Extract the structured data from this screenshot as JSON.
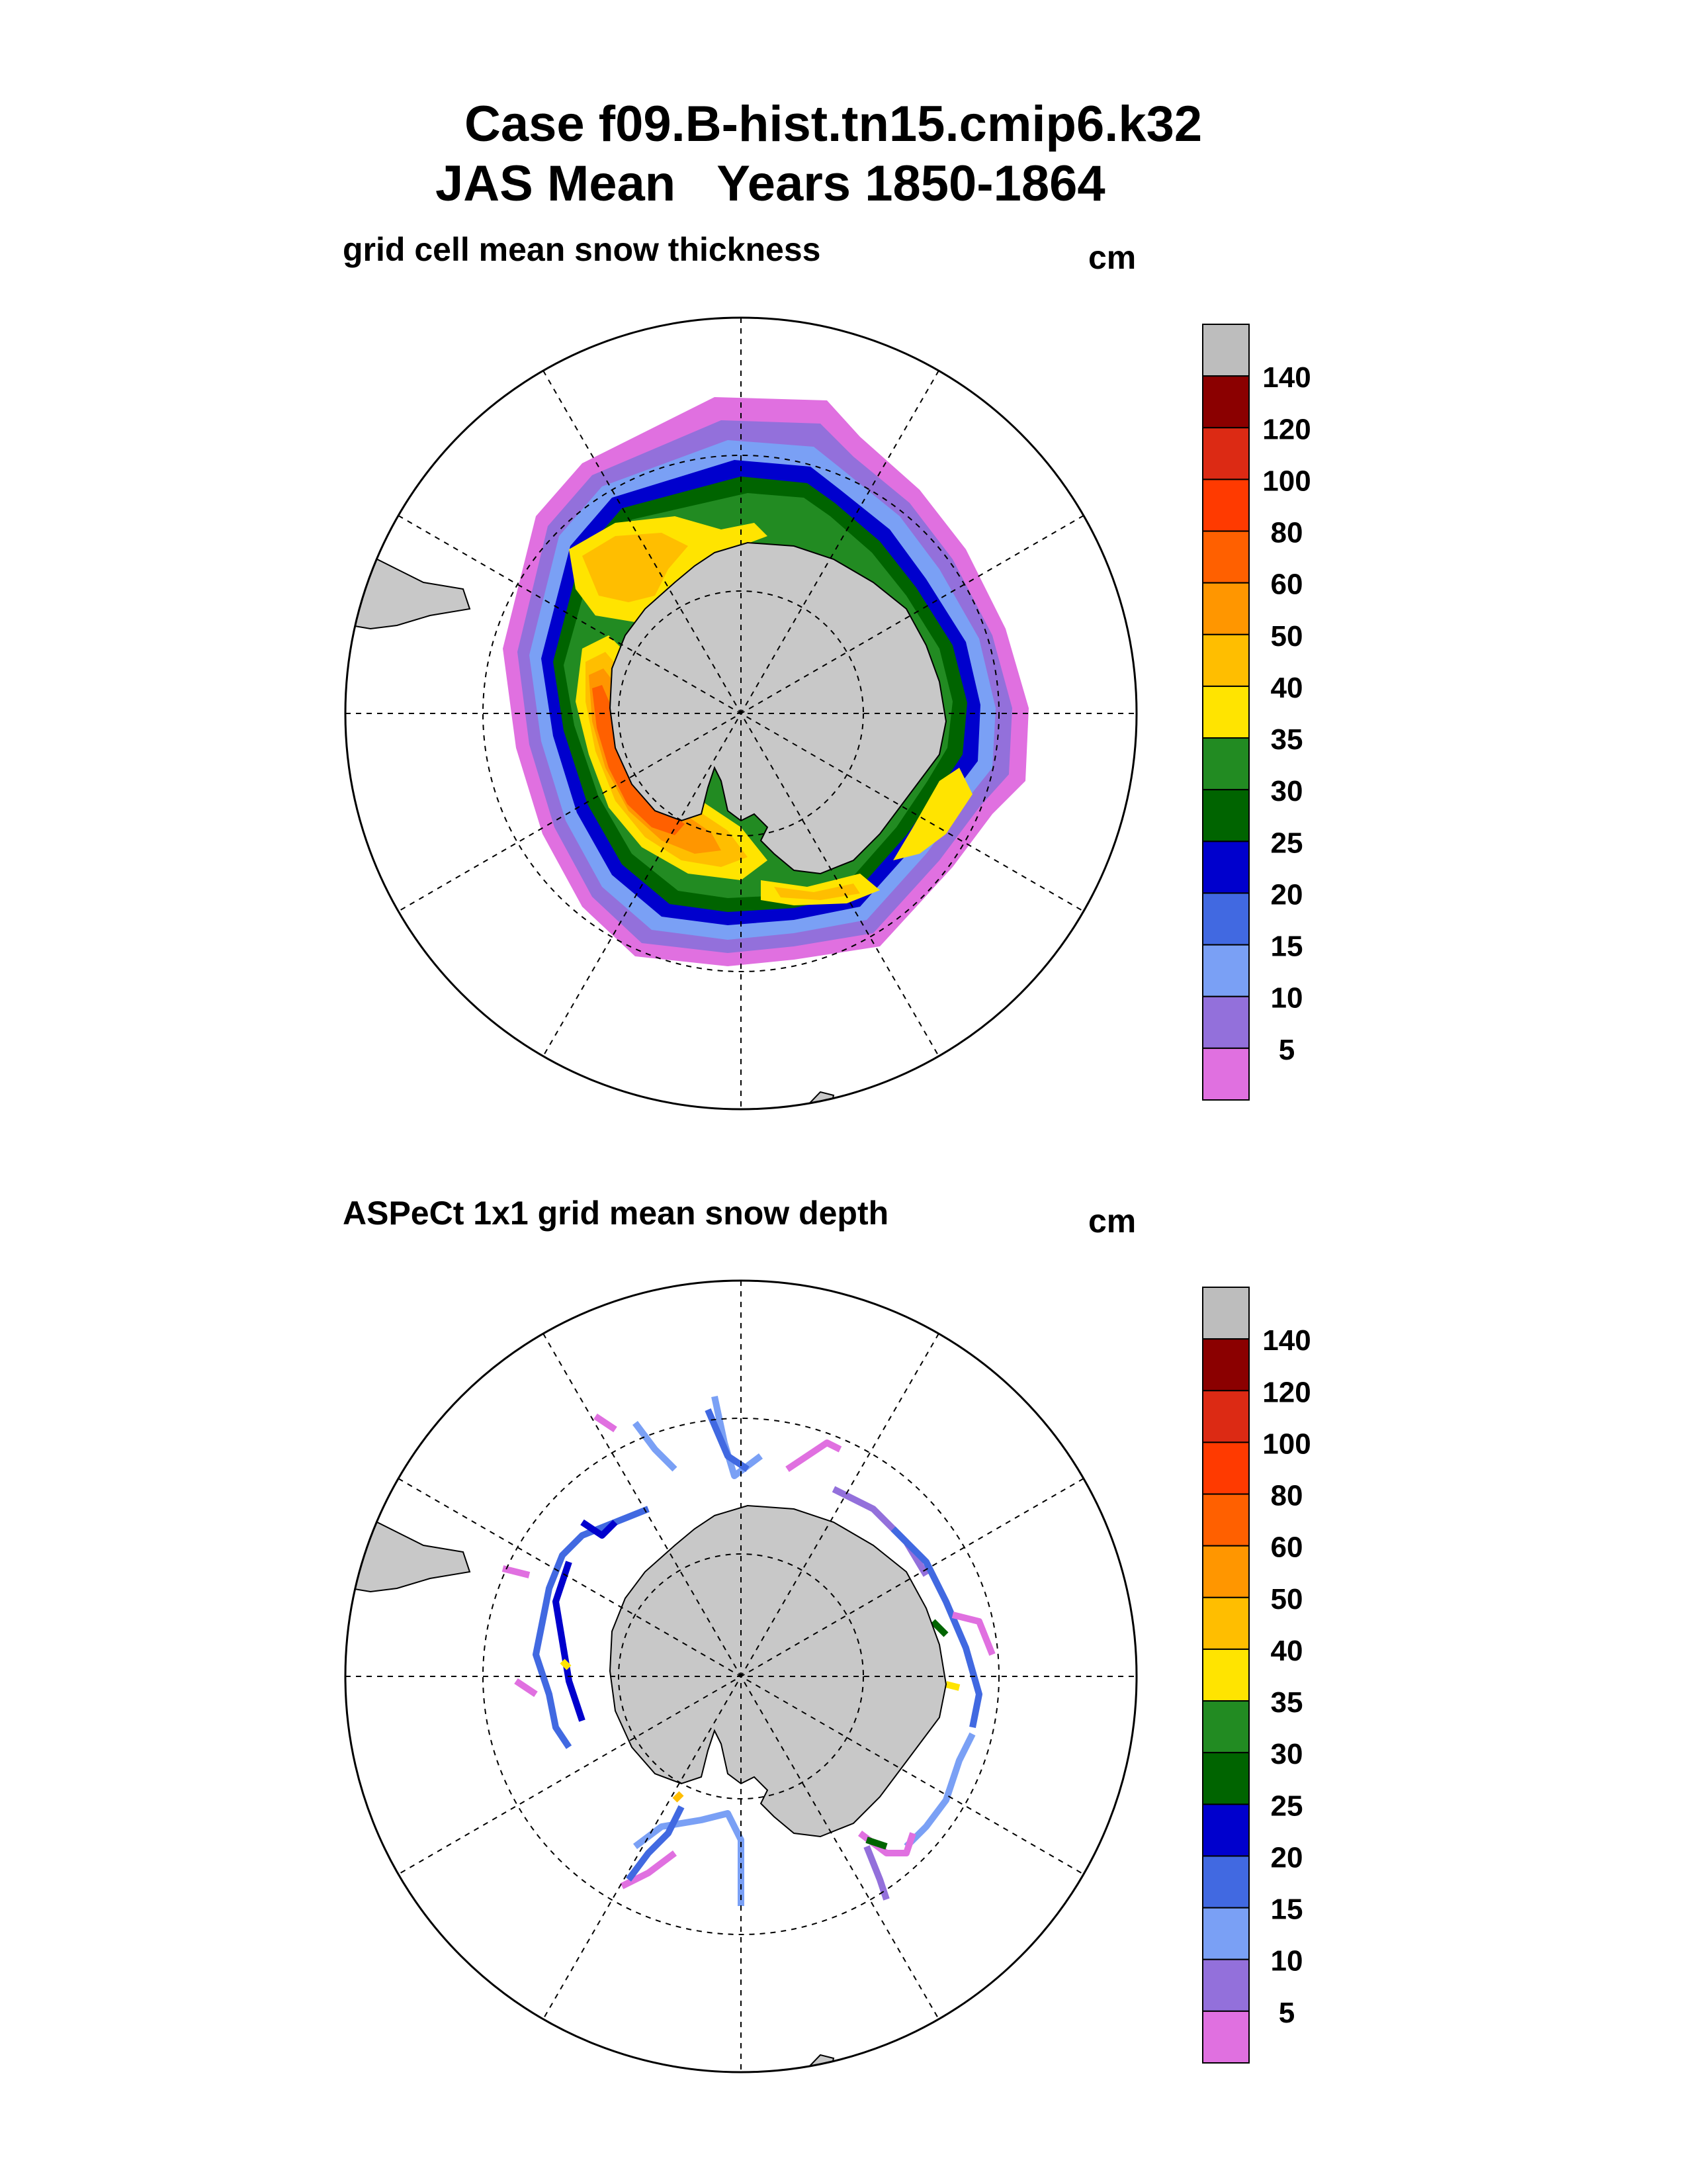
{
  "header": {
    "title_line1": "Case f09.B-hist.tn15.cmip6.k32",
    "title_line2": "JAS Mean   Years 1850-1864"
  },
  "colorbar": {
    "labels": [
      "140",
      "120",
      "100",
      "80",
      "60",
      "50",
      "40",
      "35",
      "30",
      "25",
      "20",
      "15",
      "10",
      "5"
    ],
    "colors": [
      "#bdbdbd",
      "#8b0000",
      "#dc2a14",
      "#ff3a00",
      "#ff6000",
      "#ff9600",
      "#ffbe00",
      "#ffe400",
      "#228b22",
      "#006400",
      "#0000cd",
      "#4169e1",
      "#7aa0f5",
      "#9370db",
      "#e070e0"
    ]
  },
  "land_color": "#c8c8c8",
  "chart_data": [
    {
      "type": "heatmap",
      "title": "grid cell mean snow thickness",
      "units": "cm",
      "projection": "south polar stereographic",
      "levels": [
        5,
        10,
        15,
        20,
        25,
        30,
        35,
        40,
        50,
        60,
        80,
        100,
        120,
        140
      ],
      "description_values": {
        "weddell_sea_max_cm": 80,
        "ross_sea_max_cm": 40,
        "ice_edge_cm": 5
      }
    },
    {
      "type": "heatmap",
      "title": "ASPeCt 1x1 grid mean snow depth",
      "units": "cm",
      "projection": "south polar stereographic",
      "levels": [
        5,
        10,
        15,
        20,
        25,
        30,
        35,
        40,
        50,
        60,
        80,
        100,
        120,
        140
      ]
    }
  ]
}
